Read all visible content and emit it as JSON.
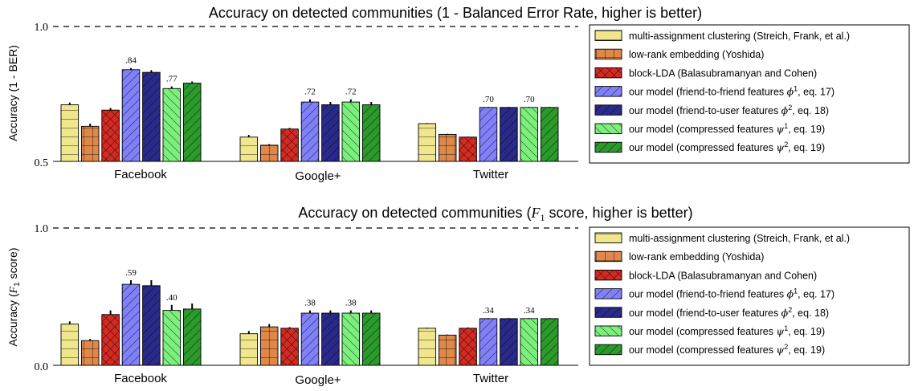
{
  "series_styles": [
    {
      "color": "#f0e68c",
      "pattern": "hlines"
    },
    {
      "color": "#e0884a",
      "pattern": "plus"
    },
    {
      "color": "#d42a22",
      "pattern": "crosshatch"
    },
    {
      "color": "#8080f8",
      "pattern": "diag"
    },
    {
      "color": "#2a2a8a",
      "pattern": "diag"
    },
    {
      "color": "#7cf07c",
      "pattern": "backdiag"
    },
    {
      "color": "#2a9a2a",
      "pattern": "diag"
    }
  ],
  "chart_data": [
    {
      "type": "bar",
      "title": "Accuracy on detected communities (1 - Balanced Error Rate, higher is better)",
      "ylabel": "Accuracy (1 - BER)",
      "ylim": [
        0.5,
        1.0
      ],
      "yticks": [
        "0.5",
        "1.0"
      ],
      "reference_line": 1.0,
      "legend_position": "right",
      "categories": [
        "Facebook",
        "Google+",
        "Twitter"
      ],
      "series": [
        {
          "name": "multi-assignment clustering (Streich, Frank, et al.)",
          "values": [
            0.71,
            0.59,
            0.64
          ],
          "errors": [
            0.008,
            0.008,
            0.002
          ]
        },
        {
          "name": "low-rank embedding (Yoshida)",
          "values": [
            0.63,
            0.56,
            0.6
          ],
          "errors": [
            0.01,
            0.004,
            0.002
          ]
        },
        {
          "name": "block-LDA (Balasubramanyan and Cohen)",
          "values": [
            0.69,
            0.62,
            0.59
          ],
          "errors": [
            0.008,
            0.004,
            0.002
          ]
        },
        {
          "name": "our model (friend-to-friend features ϕ1, eq. 17)",
          "values": [
            0.84,
            0.72,
            0.7
          ],
          "errors": [
            0.006,
            0.01,
            0.002
          ]
        },
        {
          "name": "our model (friend-to-user features ϕ2, eq. 18)",
          "values": [
            0.83,
            0.71,
            0.7
          ],
          "errors": [
            0.008,
            0.01,
            0.002
          ]
        },
        {
          "name": "our model (compressed features ψ1, eq. 19)",
          "values": [
            0.77,
            0.72,
            0.7
          ],
          "errors": [
            0.008,
            0.01,
            0.002
          ]
        },
        {
          "name": "our model (compressed features ψ2, eq. 19)",
          "values": [
            0.79,
            0.71,
            0.7
          ],
          "errors": [
            0.006,
            0.01,
            0.002
          ]
        }
      ],
      "data_labels": [
        {
          "category": "Facebook",
          "series": 3,
          "text": ".84"
        },
        {
          "category": "Facebook",
          "series": 5,
          "text": ".77"
        },
        {
          "category": "Google+",
          "series": 3,
          "text": ".72"
        },
        {
          "category": "Google+",
          "series": 5,
          "text": ".72"
        },
        {
          "category": "Twitter",
          "series": 3,
          "text": ".70"
        },
        {
          "category": "Twitter",
          "series": 5,
          "text": ".70"
        }
      ]
    },
    {
      "type": "bar",
      "title": "Accuracy on detected communities (F1 score, higher is better)",
      "ylabel": "Accuracy (F1 score)",
      "ylim": [
        0.0,
        1.0
      ],
      "yticks": [
        "0.0",
        "1.0"
      ],
      "reference_line": 1.0,
      "legend_position": "right",
      "categories": [
        "Facebook",
        "Google+",
        "Twitter"
      ],
      "series": [
        {
          "name": "multi-assignment clustering (Streich, Frank, et al.)",
          "values": [
            0.3,
            0.23,
            0.27
          ],
          "errors": [
            0.02,
            0.02,
            0.004
          ]
        },
        {
          "name": "low-rank embedding (Yoshida)",
          "values": [
            0.18,
            0.28,
            0.22
          ],
          "errors": [
            0.012,
            0.02,
            0.004
          ]
        },
        {
          "name": "block-LDA (Balasubramanyan and Cohen)",
          "values": [
            0.37,
            0.27,
            0.27
          ],
          "errors": [
            0.03,
            0.008,
            0.006
          ]
        },
        {
          "name": "our model (friend-to-friend features ϕ1, eq. 17)",
          "values": [
            0.59,
            0.38,
            0.34
          ],
          "errors": [
            0.03,
            0.02,
            0.004
          ]
        },
        {
          "name": "our model (friend-to-user features ϕ2, eq. 18)",
          "values": [
            0.58,
            0.38,
            0.34
          ],
          "errors": [
            0.04,
            0.02,
            0.004
          ]
        },
        {
          "name": "our model (compressed features ψ1, eq. 19)",
          "values": [
            0.4,
            0.38,
            0.34
          ],
          "errors": [
            0.04,
            0.02,
            0.004
          ]
        },
        {
          "name": "our model (compressed features ψ2, eq. 19)",
          "values": [
            0.41,
            0.38,
            0.34
          ],
          "errors": [
            0.04,
            0.02,
            0.004
          ]
        }
      ],
      "data_labels": [
        {
          "category": "Facebook",
          "series": 3,
          "text": ".59"
        },
        {
          "category": "Facebook",
          "series": 5,
          "text": ".40"
        },
        {
          "category": "Google+",
          "series": 3,
          "text": ".38"
        },
        {
          "category": "Google+",
          "series": 5,
          "text": ".38"
        },
        {
          "category": "Twitter",
          "series": 3,
          "text": ".34"
        },
        {
          "category": "Twitter",
          "series": 5,
          "text": ".34"
        }
      ]
    }
  ]
}
